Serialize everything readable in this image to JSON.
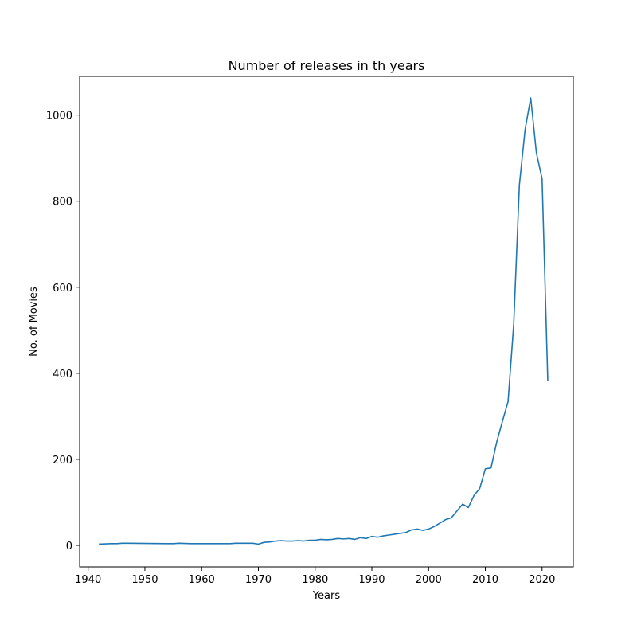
{
  "chart_data": {
    "type": "line",
    "title": "Number of releases in th years",
    "xlabel": "Years",
    "ylabel": "No. of Movies",
    "xlim": [
      1938.5,
      2025.5
    ],
    "ylim": [
      -50,
      1090
    ],
    "xticks": [
      1940,
      1950,
      1960,
      1970,
      1980,
      1990,
      2000,
      2010,
      2020
    ],
    "yticks": [
      0,
      200,
      400,
      600,
      800,
      1000
    ],
    "grid": false,
    "legend": "none",
    "series": [
      {
        "color": "#1f77b4",
        "x": [
          1942,
          1944,
          1945,
          1946,
          1947,
          1954,
          1955,
          1956,
          1958,
          1959,
          1960,
          1962,
          1963,
          1964,
          1965,
          1966,
          1967,
          1968,
          1969,
          1970,
          1971,
          1972,
          1973,
          1974,
          1975,
          1976,
          1977,
          1978,
          1979,
          1980,
          1981,
          1982,
          1983,
          1984,
          1985,
          1986,
          1987,
          1988,
          1989,
          1990,
          1991,
          1992,
          1993,
          1994,
          1995,
          1996,
          1997,
          1998,
          1999,
          2000,
          2001,
          2002,
          2003,
          2004,
          2005,
          2006,
          2007,
          2008,
          2009,
          2010,
          2011,
          2012,
          2013,
          2014,
          2015,
          2016,
          2017,
          2018,
          2019,
          2020,
          2021
        ],
        "y": [
          3,
          4,
          4,
          5,
          5,
          4,
          4,
          5,
          4,
          4,
          4,
          4,
          4,
          4,
          4,
          5,
          5,
          5,
          5,
          3,
          7,
          8,
          10,
          11,
          10,
          10,
          11,
          10,
          12,
          12,
          14,
          13,
          14,
          16,
          15,
          16,
          14,
          18,
          16,
          21,
          19,
          22,
          24,
          26,
          28,
          30,
          36,
          38,
          35,
          38,
          44,
          52,
          60,
          64,
          80,
          96,
          88,
          116,
          132,
          178,
          180,
          240,
          288,
          334,
          514,
          838,
          966,
          1040,
          912,
          852,
          384
        ]
      }
    ]
  }
}
